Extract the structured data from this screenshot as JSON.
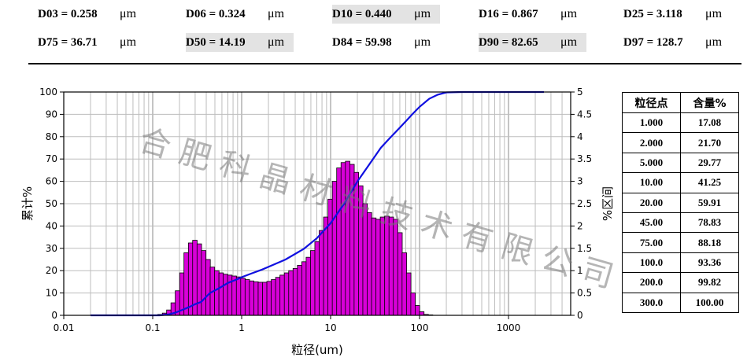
{
  "d_values": [
    [
      {
        "label": "D03 = 0.258",
        "unit": "μm",
        "highlight": false
      },
      {
        "label": "D06 = 0.324",
        "unit": "μm",
        "highlight": false
      },
      {
        "label": "D10 = 0.440",
        "unit": "μm",
        "highlight": true
      },
      {
        "label": "D16 = 0.867",
        "unit": "μm",
        "highlight": false
      },
      {
        "label": "D25 = 3.118",
        "unit": "μm",
        "highlight": false
      }
    ],
    [
      {
        "label": "D75 = 36.71",
        "unit": "μm",
        "highlight": false
      },
      {
        "label": "D50 = 14.19",
        "unit": "μm",
        "highlight": true
      },
      {
        "label": "D84 = 59.98",
        "unit": "μm",
        "highlight": false
      },
      {
        "label": "D90 = 82.65",
        "unit": "μm",
        "highlight": true
      },
      {
        "label": "D97 = 128.7",
        "unit": "μm",
        "highlight": false
      }
    ]
  ],
  "table": {
    "headers": [
      "粒径点",
      "含量%"
    ],
    "rows": [
      [
        "1.000",
        "17.08"
      ],
      [
        "2.000",
        "21.70"
      ],
      [
        "5.000",
        "29.77"
      ],
      [
        "10.00",
        "41.25"
      ],
      [
        "20.00",
        "59.91"
      ],
      [
        "45.00",
        "78.83"
      ],
      [
        "75.00",
        "88.18"
      ],
      [
        "100.0",
        "93.36"
      ],
      [
        "200.0",
        "99.82"
      ],
      [
        "300.0",
        "100.00"
      ]
    ]
  },
  "watermark": [
    "合",
    "肥",
    "科",
    "晶",
    "材",
    "料",
    "技",
    "术",
    "有",
    "限",
    "公",
    "司"
  ],
  "chart_data": {
    "type": "bar",
    "xlabel": "粒径(um)",
    "ylabel": "累计%",
    "y2label": "%区间",
    "x_scale": "log",
    "xlim": [
      0.01,
      5000
    ],
    "ylim": [
      0,
      100
    ],
    "y2lim": [
      0,
      5
    ],
    "x_ticks": [
      "0.01",
      "0.1",
      "1",
      "10",
      "100",
      "1000"
    ],
    "y_ticks": [
      "0",
      "10",
      "20",
      "30",
      "40",
      "50",
      "60",
      "70",
      "80",
      "90",
      "100"
    ],
    "y2_ticks": [
      "0",
      "0.5",
      "1",
      "1.5",
      "2",
      "2.5",
      "3",
      "3.5",
      "4",
      "4.5",
      "5"
    ],
    "bar_color": "#d800d8",
    "line_color": "#1010e0",
    "grid": true,
    "series": [
      {
        "kind": "bar",
        "axis": "right",
        "x": [
          0.121,
          0.136,
          0.152,
          0.17,
          0.19,
          0.213,
          0.238,
          0.267,
          0.298,
          0.334,
          0.374,
          0.419,
          0.469,
          0.525,
          0.588,
          0.658,
          0.737,
          0.825,
          0.924,
          1.034,
          1.158,
          1.296,
          1.451,
          1.625,
          1.819,
          2.036,
          2.28,
          2.552,
          2.857,
          3.199,
          3.581,
          4.009,
          4.488,
          5.025,
          5.625,
          6.298,
          7.05,
          7.893,
          8.837,
          9.893,
          11.076,
          12.4,
          13.882,
          15.541,
          17.398,
          19.478,
          21.805,
          24.412,
          27.329,
          30.596,
          34.253,
          38.347,
          42.93,
          48.06,
          53.805,
          60.236,
          67.435,
          75.495,
          84.518,
          94.62,
          105.93,
          118.59,
          132.76,
          148.63,
          166.39,
          186.28,
          208.54
        ],
        "values": [
          0.02,
          0.05,
          0.12,
          0.28,
          0.55,
          0.95,
          1.4,
          1.62,
          1.68,
          1.6,
          1.45,
          1.25,
          1.08,
          1.0,
          0.95,
          0.92,
          0.9,
          0.88,
          0.86,
          0.83,
          0.8,
          0.77,
          0.75,
          0.74,
          0.74,
          0.76,
          0.8,
          0.85,
          0.9,
          0.95,
          1.0,
          1.05,
          1.12,
          1.2,
          1.3,
          1.45,
          1.65,
          1.9,
          2.2,
          2.6,
          3.0,
          3.3,
          3.42,
          3.45,
          3.38,
          3.2,
          2.9,
          2.5,
          2.3,
          2.18,
          2.15,
          2.2,
          2.22,
          2.2,
          2.15,
          1.85,
          1.4,
          0.95,
          0.5,
          0.22,
          0.08,
          0.02,
          0.01,
          0.0,
          0.0,
          0.0,
          0.0
        ]
      },
      {
        "kind": "line",
        "axis": "left",
        "name": "",
        "x": [
          0.02,
          0.12,
          0.15,
          0.18,
          0.22,
          0.26,
          0.3,
          0.35,
          0.44,
          0.55,
          0.7,
          0.87,
          1.0,
          1.3,
          1.7,
          2.0,
          3.12,
          5.0,
          7.0,
          10.0,
          14.19,
          20.0,
          30.0,
          36.71,
          45.0,
          59.98,
          75.0,
          82.65,
          100.0,
          128.7,
          160.0,
          200.0,
          300.0,
          1000.0,
          2500.0
        ],
        "values": [
          0,
          0,
          0.4,
          1.2,
          2.6,
          3.8,
          5.0,
          6.0,
          10.0,
          12.0,
          14.5,
          16.0,
          17.08,
          18.8,
          20.5,
          21.7,
          25.0,
          29.77,
          34.5,
          41.25,
          50.0,
          59.91,
          70.0,
          75.0,
          78.83,
          84.0,
          88.18,
          90.0,
          93.36,
          97.0,
          98.8,
          99.82,
          100,
          100,
          100
        ]
      }
    ]
  }
}
